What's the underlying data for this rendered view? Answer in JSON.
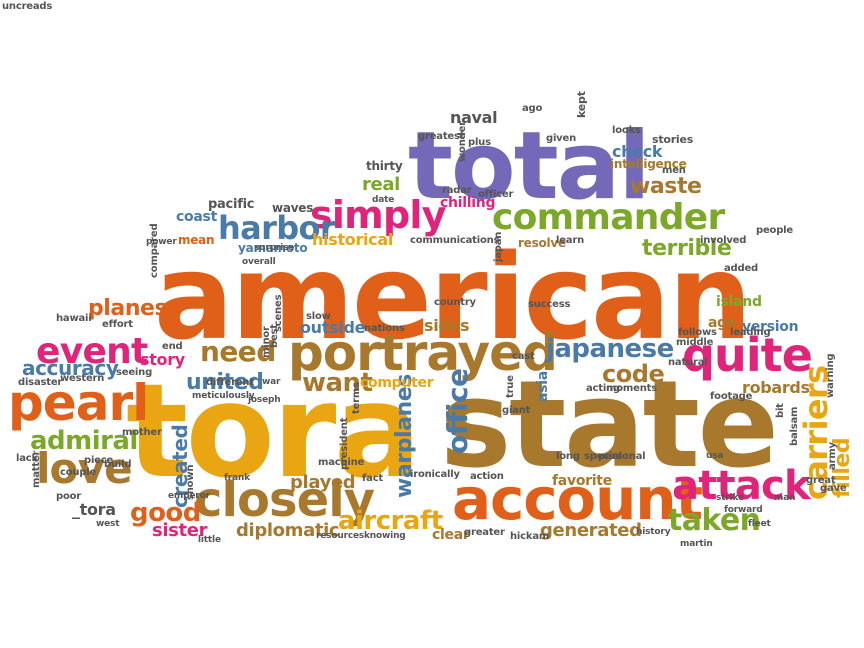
{
  "colors": {
    "orange": "#e0601a",
    "yellow": "#e9a512",
    "brown": "#a8782d",
    "purple": "#7468b8",
    "green": "#7ca82a",
    "blue": "#4a7aa8",
    "pink": "#e0247a",
    "gray": "#555555"
  },
  "words": [
    {
      "text": "american",
      "color": "orange"
    },
    {
      "text": "tora",
      "color": "yellow"
    },
    {
      "text": "state",
      "color": "brown"
    },
    {
      "text": "total",
      "color": "purple"
    },
    {
      "text": "account",
      "color": "orange"
    },
    {
      "text": "portrayed",
      "color": "brown"
    },
    {
      "text": "closely",
      "color": "brown"
    },
    {
      "text": "commander",
      "color": "green"
    },
    {
      "text": "quite",
      "color": "pink"
    },
    {
      "text": "pearl",
      "color": "orange"
    },
    {
      "text": "attack",
      "color": "pink"
    },
    {
      "text": "love",
      "color": "brown"
    },
    {
      "text": "simply",
      "color": "pink"
    },
    {
      "text": "harbor",
      "color": "blue"
    },
    {
      "text": "event",
      "color": "pink"
    },
    {
      "text": "japanese",
      "color": "blue"
    },
    {
      "text": "need",
      "color": "brown"
    },
    {
      "text": "admiral",
      "color": "green"
    },
    {
      "text": "accuracy",
      "color": "blue"
    },
    {
      "text": "united",
      "color": "blue"
    },
    {
      "text": "want",
      "color": "brown"
    },
    {
      "text": "code",
      "color": "brown"
    },
    {
      "text": "taken",
      "color": "green"
    },
    {
      "text": "carriers",
      "color": "yellow"
    },
    {
      "text": "office",
      "color": "blue"
    },
    {
      "text": "terrible",
      "color": "green"
    },
    {
      "text": "good",
      "color": "orange"
    },
    {
      "text": "aircraft",
      "color": "yellow"
    },
    {
      "text": "waste",
      "color": "brown"
    },
    {
      "text": "warplanes",
      "color": "blue"
    },
    {
      "text": "filled",
      "color": "yellow"
    },
    {
      "text": "planes",
      "color": "orange"
    },
    {
      "text": "robards",
      "color": "brown"
    },
    {
      "text": "generated",
      "color": "brown"
    },
    {
      "text": "diplomatic",
      "color": "brown"
    },
    {
      "text": "sister",
      "color": "pink"
    },
    {
      "text": "created",
      "color": "blue"
    },
    {
      "text": "played",
      "color": "brown"
    },
    {
      "text": "historical",
      "color": "yellow"
    },
    {
      "text": "real",
      "color": "green"
    },
    {
      "text": "naval",
      "color": "gray"
    },
    {
      "text": "check",
      "color": "blue"
    },
    {
      "text": "intelligence",
      "color": "brown"
    },
    {
      "text": "chilling",
      "color": "pink"
    },
    {
      "text": "yamamoto",
      "color": "blue"
    },
    {
      "text": "version",
      "color": "blue"
    },
    {
      "text": "story",
      "color": "pink"
    },
    {
      "text": "outside",
      "color": "blue"
    },
    {
      "text": "computer",
      "color": "yellow"
    },
    {
      "text": "age",
      "color": "brown"
    },
    {
      "text": "favorite",
      "color": "brown"
    },
    {
      "text": "sides",
      "color": "brown"
    },
    {
      "text": "_tora",
      "color": "gray"
    },
    {
      "text": "clear",
      "color": "brown"
    },
    {
      "text": "resolve",
      "color": "brown"
    },
    {
      "text": "mean",
      "color": "orange"
    },
    {
      "text": "island",
      "color": "green"
    },
    {
      "text": "pacific",
      "color": "gray"
    },
    {
      "text": "coast",
      "color": "blue"
    },
    {
      "text": "asia",
      "color": "blue"
    },
    {
      "text": "thirty",
      "color": "gray"
    },
    {
      "text": "waves",
      "color": "gray"
    },
    {
      "text": "stories",
      "color": "gray"
    },
    {
      "text": "western",
      "color": "gray"
    },
    {
      "text": "disaster",
      "color": "gray"
    },
    {
      "text": "seeing",
      "color": "gray"
    },
    {
      "text": "end",
      "color": "gray"
    },
    {
      "text": "hawaii",
      "color": "gray"
    },
    {
      "text": "effort",
      "color": "gray"
    },
    {
      "text": "different",
      "color": "gray"
    },
    {
      "text": "meticulously",
      "color": "gray"
    },
    {
      "text": "joseph",
      "color": "gray"
    },
    {
      "text": "war",
      "color": "gray"
    },
    {
      "text": "frank",
      "color": "gray"
    },
    {
      "text": "emperor",
      "color": "gray"
    },
    {
      "text": "west",
      "color": "gray"
    },
    {
      "text": "little",
      "color": "gray"
    },
    {
      "text": "resources",
      "color": "gray"
    },
    {
      "text": "knowing",
      "color": "gray"
    },
    {
      "text": "greater",
      "color": "gray"
    },
    {
      "text": "hickam",
      "color": "gray"
    },
    {
      "text": "history",
      "color": "gray"
    },
    {
      "text": "martin",
      "color": "gray"
    },
    {
      "text": "fleet",
      "color": "gray"
    },
    {
      "text": "army",
      "color": "gray"
    },
    {
      "text": "gave",
      "color": "gray"
    },
    {
      "text": "great",
      "color": "gray"
    },
    {
      "text": "forward",
      "color": "gray"
    },
    {
      "text": "strike",
      "color": "gray"
    },
    {
      "text": "man",
      "color": "gray"
    },
    {
      "text": "usa",
      "color": "gray"
    },
    {
      "text": "personal",
      "color": "gray"
    },
    {
      "text": "long",
      "color": "gray"
    },
    {
      "text": "special",
      "color": "gray"
    },
    {
      "text": "acting",
      "color": "gray"
    },
    {
      "text": "moments",
      "color": "gray"
    },
    {
      "text": "footage",
      "color": "gray"
    },
    {
      "text": "natural",
      "color": "gray"
    },
    {
      "text": "true",
      "color": "gray"
    },
    {
      "text": "giant",
      "color": "gray"
    },
    {
      "text": "fact",
      "color": "gray"
    },
    {
      "text": "ironically",
      "color": "gray"
    },
    {
      "text": "action",
      "color": "gray"
    },
    {
      "text": "machine",
      "color": "gray"
    },
    {
      "text": "terms",
      "color": "gray"
    },
    {
      "text": "slow",
      "color": "gray"
    },
    {
      "text": "scenes",
      "color": "gray"
    },
    {
      "text": "nations",
      "color": "gray"
    },
    {
      "text": "minor",
      "color": "gray"
    },
    {
      "text": "best",
      "color": "gray"
    },
    {
      "text": "country",
      "color": "gray"
    },
    {
      "text": "success",
      "color": "gray"
    },
    {
      "text": "follows",
      "color": "gray"
    },
    {
      "text": "middle",
      "color": "gray"
    },
    {
      "text": "leading",
      "color": "gray"
    },
    {
      "text": "added",
      "color": "gray"
    },
    {
      "text": "involved",
      "color": "gray"
    },
    {
      "text": "learn",
      "color": "gray"
    },
    {
      "text": "communications",
      "color": "gray"
    },
    {
      "text": "overall",
      "color": "gray"
    },
    {
      "text": "surprise",
      "color": "gray"
    },
    {
      "text": "power",
      "color": "gray"
    },
    {
      "text": "date",
      "color": "gray"
    },
    {
      "text": "radar",
      "color": "gray"
    },
    {
      "text": "officer",
      "color": "gray"
    },
    {
      "text": "wonder",
      "color": "gray"
    },
    {
      "text": "greatest",
      "color": "gray"
    },
    {
      "text": "plus",
      "color": "gray"
    },
    {
      "text": "given",
      "color": "gray"
    },
    {
      "text": "kept",
      "color": "gray"
    },
    {
      "text": "ago",
      "color": "gray"
    },
    {
      "text": "looks",
      "color": "gray"
    },
    {
      "text": "men",
      "color": "gray"
    },
    {
      "text": "people",
      "color": "gray"
    },
    {
      "text": "warning",
      "color": "gray"
    },
    {
      "text": "bit",
      "color": "gray"
    },
    {
      "text": "balsam",
      "color": "gray"
    },
    {
      "text": "compared",
      "color": "gray"
    },
    {
      "text": "mother",
      "color": "gray"
    },
    {
      "text": "lack",
      "color": "gray"
    },
    {
      "text": "couple",
      "color": "gray"
    },
    {
      "text": "piece",
      "color": "gray"
    },
    {
      "text": "build",
      "color": "gray"
    },
    {
      "text": "matter",
      "color": "gray"
    },
    {
      "text": "poor",
      "color": "gray"
    },
    {
      "text": "shown",
      "color": "gray"
    },
    {
      "text": "president",
      "color": "gray"
    },
    {
      "text": "japan",
      "color": "gray"
    },
    {
      "text": "cast",
      "color": "gray"
    },
    {
      "text": "uncreads",
      "color": "gray"
    }
  ]
}
